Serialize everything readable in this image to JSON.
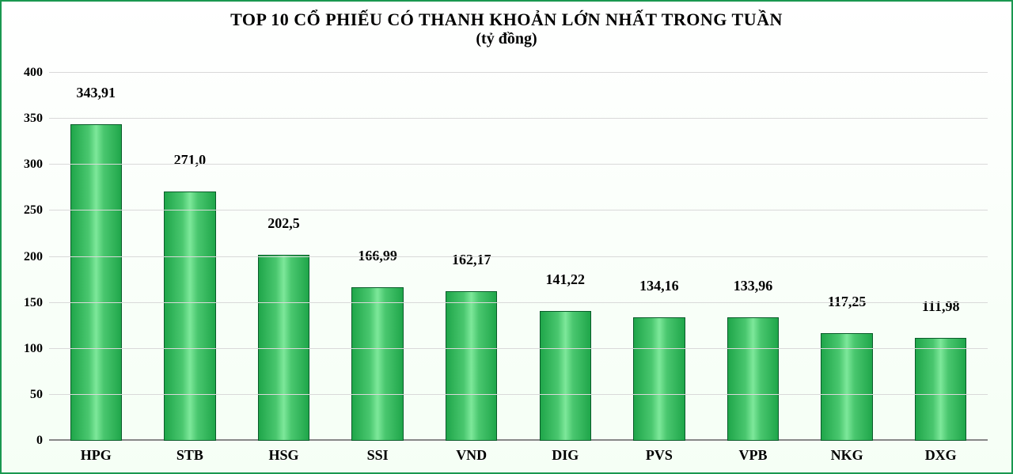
{
  "chart": {
    "type": "bar",
    "title_line1": "TOP 10 CỔ PHIẾU CÓ THANH KHOẢN LỚN NHẤT TRONG TUẦN",
    "title_line2": "(tỷ đồng)",
    "title_fontsize": 22,
    "subtitle_fontsize": 20,
    "title_color": "#000000",
    "title_weight": "bold",
    "font_family": "Times New Roman",
    "border_color": "#1a9850",
    "background_gradient_top": "#ffffff",
    "background_gradient_bottom": "#f5fff5",
    "categories": [
      "HPG",
      "STB",
      "HSG",
      "SSI",
      "VND",
      "DIG",
      "PVS",
      "VPB",
      "NKG",
      "DXG"
    ],
    "values": [
      343.91,
      271.0,
      202.5,
      166.99,
      162.17,
      141.22,
      134.16,
      133.96,
      117.25,
      111.98
    ],
    "value_labels": [
      "343,91",
      "271,0",
      "202,5",
      "166,99",
      "162,17",
      "141,22",
      "134,16",
      "133,96",
      "117,25",
      "111,98"
    ],
    "ylim": [
      0,
      400
    ],
    "ytick_step": 50,
    "ytick_labels": [
      "0",
      "50",
      "100",
      "150",
      "200",
      "250",
      "300",
      "350",
      "400"
    ],
    "grid_color": "#d9d9d9",
    "baseline_color": "#888888",
    "bar_fill_gradient": [
      "#1fa64a",
      "#4ac76f",
      "#7de89a",
      "#4ac76f",
      "#1fa64a"
    ],
    "bar_border_color": "#0a5c2a",
    "bar_width_ratio": 0.55,
    "axis_label_fontsize": 16,
    "value_label_fontsize": 18,
    "category_label_fontsize": 18,
    "label_color": "#000000"
  }
}
